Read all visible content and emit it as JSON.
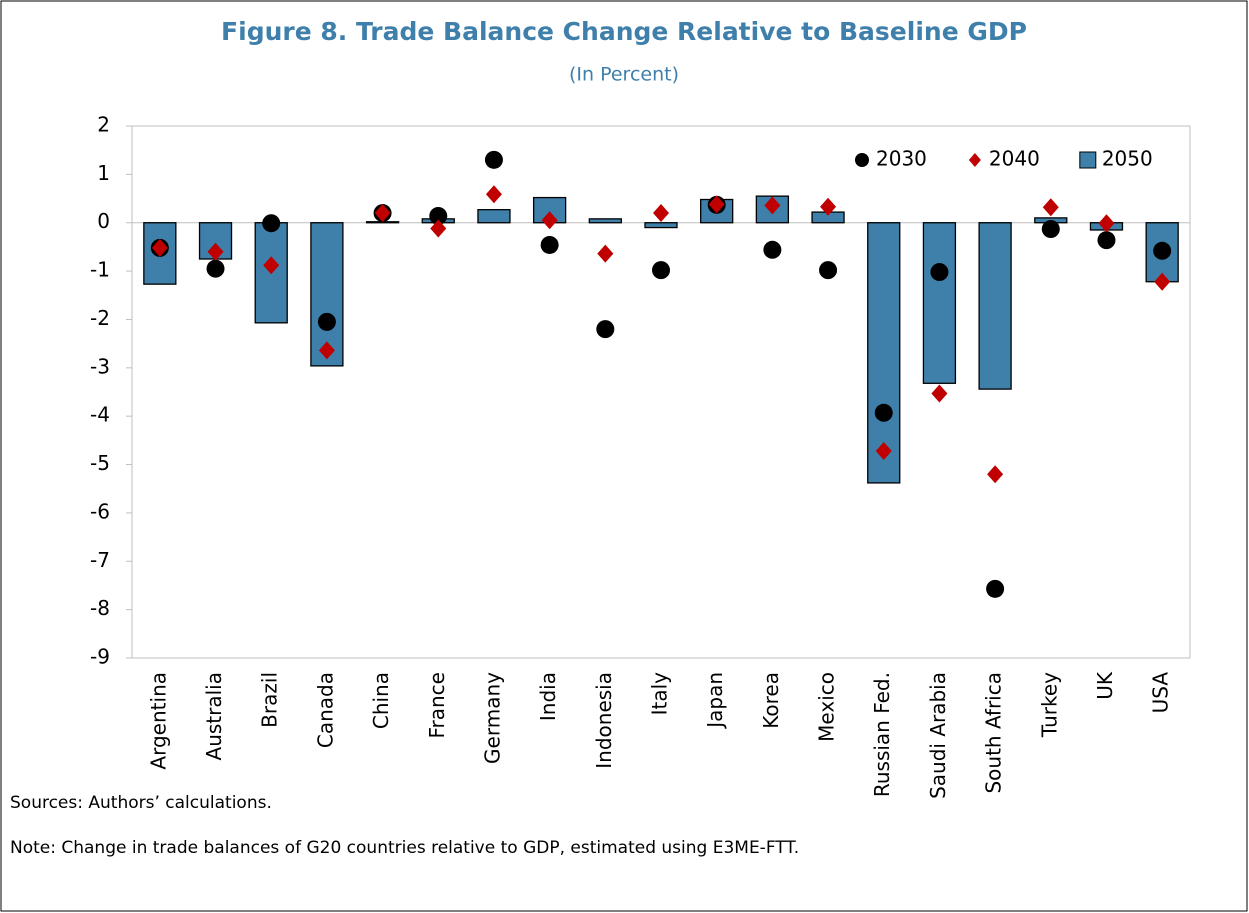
{
  "chart_data": {
    "type": "bar_dot",
    "title": "Figure 8. Trade Balance Change Relative to Baseline GDP",
    "subtitle": "(In Percent)",
    "categories": [
      "Argentina",
      "Australia",
      "Brazil",
      "Canada",
      "China",
      "France",
      "Germany",
      "India",
      "Indonesia",
      "Italy",
      "Japan",
      "Korea",
      "Mexico",
      "Russian Fed.",
      "Saudi Arabia",
      "South Africa",
      "Turkey",
      "UK",
      "USA"
    ],
    "series": [
      {
        "name": "2030",
        "marker": "circle",
        "color": "#000000",
        "values": [
          -0.52,
          -0.95,
          -0.01,
          -2.05,
          0.2,
          0.14,
          1.3,
          -0.46,
          -2.2,
          -0.98,
          0.37,
          -0.56,
          -0.98,
          -3.93,
          -1.02,
          -7.57,
          -0.13,
          -0.36,
          -0.58
        ]
      },
      {
        "name": "2040",
        "marker": "diamond",
        "color": "#c00000",
        "values": [
          -0.52,
          -0.6,
          -0.88,
          -2.64,
          0.2,
          -0.12,
          0.59,
          0.05,
          -0.64,
          0.2,
          0.38,
          0.36,
          0.33,
          -4.72,
          -3.53,
          -5.2,
          0.32,
          -0.01,
          -1.22
        ]
      },
      {
        "name": "2050",
        "marker": "bar",
        "color": "#3e80aa",
        "values": [
          -1.27,
          -0.75,
          -2.07,
          -2.96,
          0.02,
          0.08,
          0.27,
          0.52,
          0.08,
          -0.1,
          0.48,
          0.55,
          0.22,
          -5.38,
          -3.32,
          -3.44,
          0.1,
          -0.15,
          -1.22
        ]
      }
    ],
    "ylim": [
      -9,
      2
    ],
    "yticks": [
      2,
      1,
      0,
      -1,
      -2,
      -3,
      -4,
      -5,
      -6,
      -7,
      -8,
      -9
    ],
    "legend": "upper right",
    "sources": "Sources: Authors’ calculations.",
    "note": "Note: Change in trade balances of G20 countries relative to GDP, estimated using E3ME-FTT."
  }
}
